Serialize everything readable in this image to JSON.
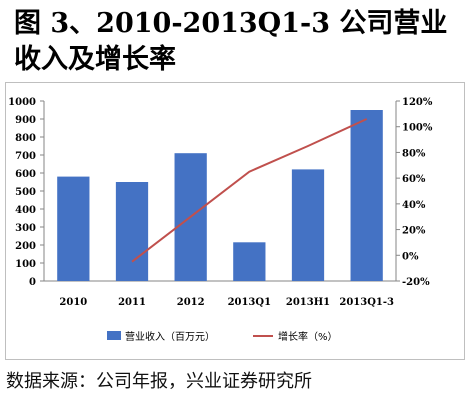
{
  "title": "图 3、2010-2013Q1-3 公司营业收入及增长率",
  "source": "数据来源：公司年报，兴业证券研究所",
  "colors": {
    "bar": "#4472c4",
    "line": "#c0504d",
    "axis": "#868686"
  },
  "chart_data": {
    "type": "bar",
    "categories": [
      "2010",
      "2011",
      "2012",
      "2013Q1",
      "2013H1",
      "2013Q1-3"
    ],
    "series": [
      {
        "name": "营业收入（百万元）",
        "type": "bar",
        "axis": "left",
        "values": [
          580,
          550,
          710,
          215,
          620,
          950
        ]
      },
      {
        "name": "增长率（%）",
        "type": "line",
        "axis": "right",
        "values": [
          null,
          -5,
          30,
          65,
          85,
          106
        ]
      }
    ],
    "ylim": [
      0,
      1000
    ],
    "y_ticks": [
      "1000",
      "900",
      "800",
      "700",
      "600",
      "500",
      "400",
      "300",
      "200",
      "100",
      "0"
    ],
    "y2lim": [
      -20,
      120
    ],
    "y2_ticks": [
      "120%",
      "100%",
      "80%",
      "60%",
      "40%",
      "20%",
      "0%",
      "-20%"
    ],
    "legend": {
      "placement": "bottom",
      "items": [
        "营业收入（百万元）",
        "增长率（%）"
      ]
    },
    "grid": false
  }
}
